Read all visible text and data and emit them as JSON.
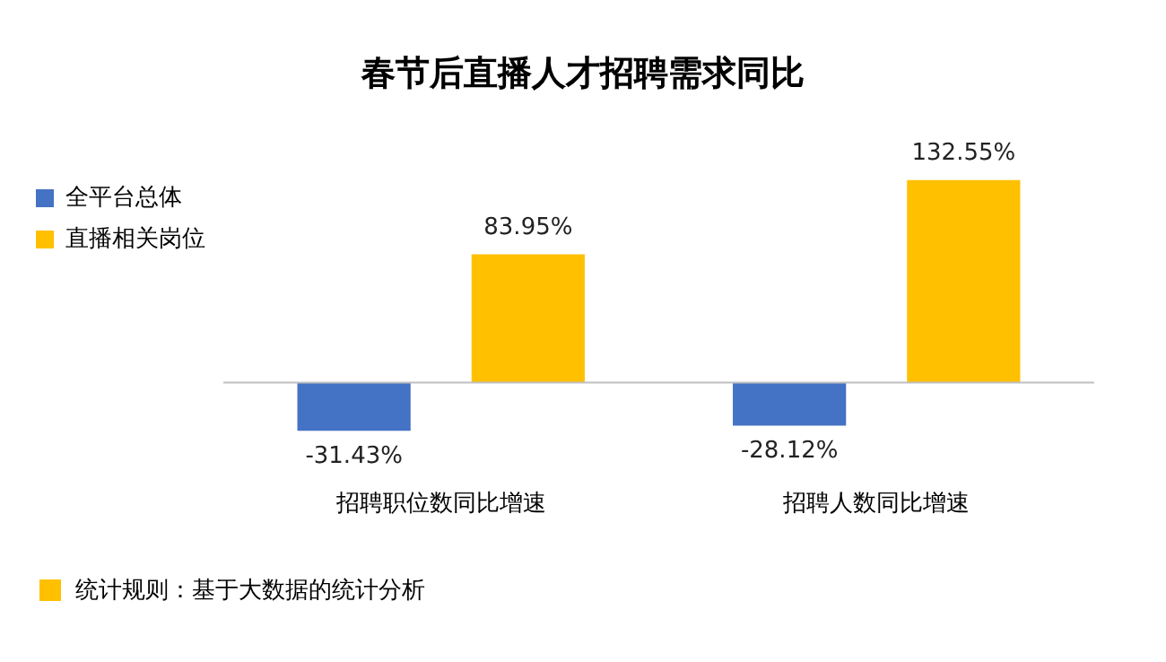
{
  "chart_data": {
    "type": "bar",
    "title": "春节后直播人才招聘需求同比",
    "categories": [
      "招聘职位数同比增速",
      "招聘人数同比增速"
    ],
    "series": [
      {
        "name": "全平台总体",
        "color": "#4472c4",
        "values": [
          -31.43,
          -28.12
        ],
        "value_labels": [
          "-31.43%",
          "-28.12%"
        ]
      },
      {
        "name": "直播相关岗位",
        "color": "#ffc000",
        "values": [
          83.95,
          132.55
        ],
        "value_labels": [
          "83.95%",
          "132.55%"
        ]
      }
    ],
    "legend": "top left",
    "grid": false,
    "annotations": [
      "统计规则：基于大数据的统计分析"
    ]
  }
}
